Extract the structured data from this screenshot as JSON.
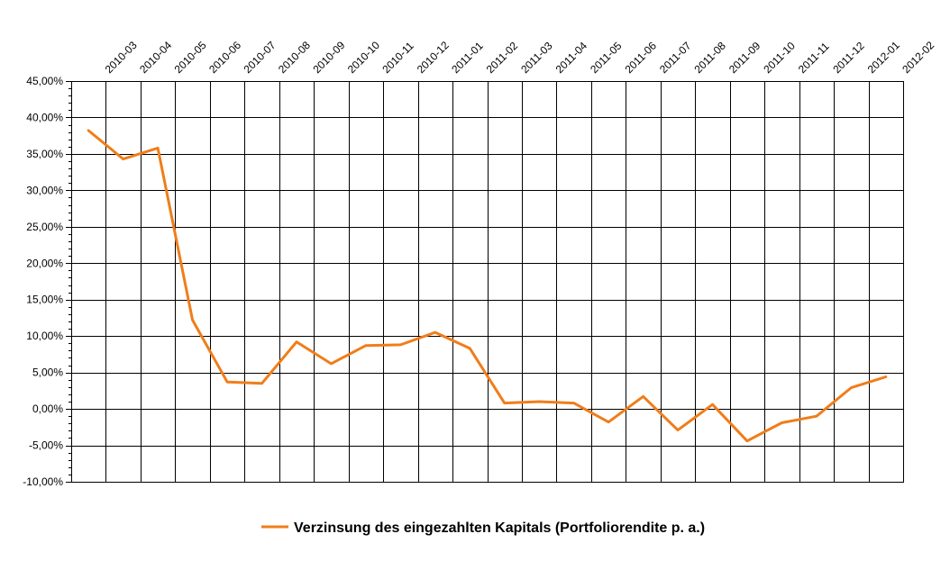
{
  "chart_data": {
    "type": "line",
    "title": "",
    "xlabel": "",
    "ylabel": "",
    "categories": [
      "2010-03",
      "2010-04",
      "2010-05",
      "2010-06",
      "2010-07",
      "2010-08",
      "2010-09",
      "2010-10",
      "2010-11",
      "2010-12",
      "2011-01",
      "2011-02",
      "2011-03",
      "2011-04",
      "2011-05",
      "2011-06",
      "2011-07",
      "2011-08",
      "2011-09",
      "2011-10",
      "2011-11",
      "2011-12",
      "2012-01",
      "2012-02"
    ],
    "y_ticks": [
      "45,00%",
      "40,00%",
      "35,00%",
      "30,00%",
      "25,00%",
      "20,00%",
      "15,00%",
      "10,00%",
      "5,00%",
      "0,00%",
      "-5,00%",
      "-10,00%"
    ],
    "ylim": [
      -10,
      45
    ],
    "y_unit": "percent",
    "grid": true,
    "x_axis_position": "top",
    "legend_position": "bottom",
    "series": [
      {
        "name": "Verzinsung des eingezahlten Kapitals (Portfoliorendite p. a.)",
        "color": "#f07d1a",
        "values": [
          38.2,
          34.3,
          35.8,
          12.2,
          3.7,
          3.5,
          9.2,
          6.2,
          8.7,
          8.8,
          10.5,
          8.3,
          0.8,
          1.0,
          0.8,
          -1.8,
          1.7,
          -2.9,
          0.6,
          -4.4,
          -1.9,
          -1.0,
          2.9,
          4.4
        ]
      }
    ]
  }
}
